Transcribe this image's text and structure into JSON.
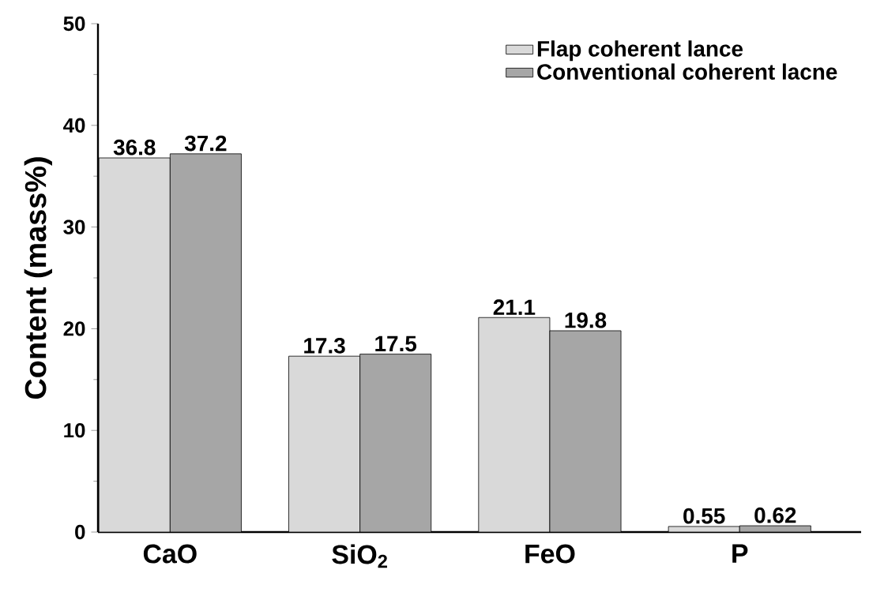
{
  "chart_data": {
    "type": "bar",
    "ylabel": "Content (mass%)",
    "categories": [
      "CaO",
      "SiO$_{2}$",
      "FeO",
      "P"
    ],
    "series": [
      {
        "name": "Flap coherent lance",
        "color": "#d9d9d9",
        "values": [
          36.8,
          17.3,
          21.1,
          0.55
        ]
      },
      {
        "name": "Conventional coherent lacne",
        "color": "#a6a6a6",
        "values": [
          37.2,
          17.5,
          19.8,
          0.62
        ]
      }
    ],
    "ylim": [
      0,
      50
    ],
    "yticks": [
      0,
      10,
      20,
      30,
      40,
      50
    ],
    "data_labels": true,
    "legend": "top right",
    "grid": false
  }
}
